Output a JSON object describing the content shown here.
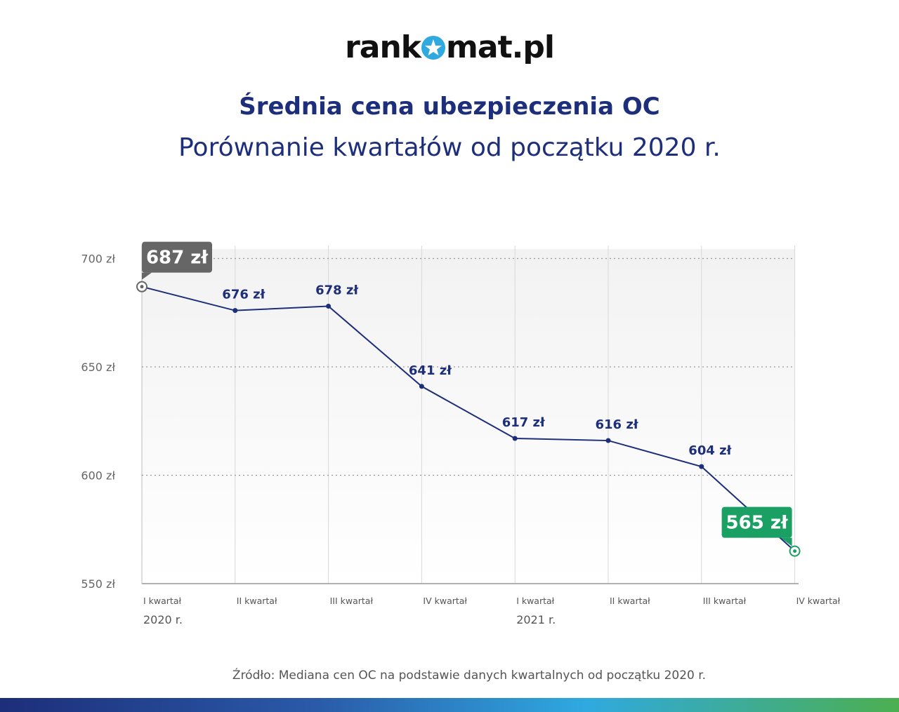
{
  "logo": {
    "part1": "rank",
    "part2": "mat.pl"
  },
  "chart_data": {
    "type": "line",
    "title": "Średnia cena ubezpieczenia OC",
    "subtitle": "Porównanie kwartałów od początku 2020 r.",
    "categories": [
      "I kwartał",
      "II kwartał",
      "III kwartał",
      "IV kwartał",
      "I kwartał",
      "II kwartał",
      "III kwartał",
      "IV kwartał"
    ],
    "year_labels": [
      "2020 r.",
      "2021 r."
    ],
    "values": [
      687,
      676,
      678,
      641,
      617,
      616,
      604,
      565
    ],
    "data_labels": [
      "687 zł",
      "676 zł",
      "678 zł",
      "641 zł",
      "617 zł",
      "616 zł",
      "604 zł",
      "565 zł"
    ],
    "y_ticks": [
      550,
      600,
      650,
      700
    ],
    "y_tick_labels": [
      "550 zł",
      "600 zł",
      "650 zł",
      "700 zł"
    ],
    "ylim": [
      550,
      710
    ],
    "grid": true,
    "highlight_first_color": "#666666",
    "highlight_last_color": "#1aa063",
    "line_color": "#1d2e7a"
  },
  "source": "Źródło: Mediana cen OC na podstawie danych kwartalnych od początku 2020 r."
}
